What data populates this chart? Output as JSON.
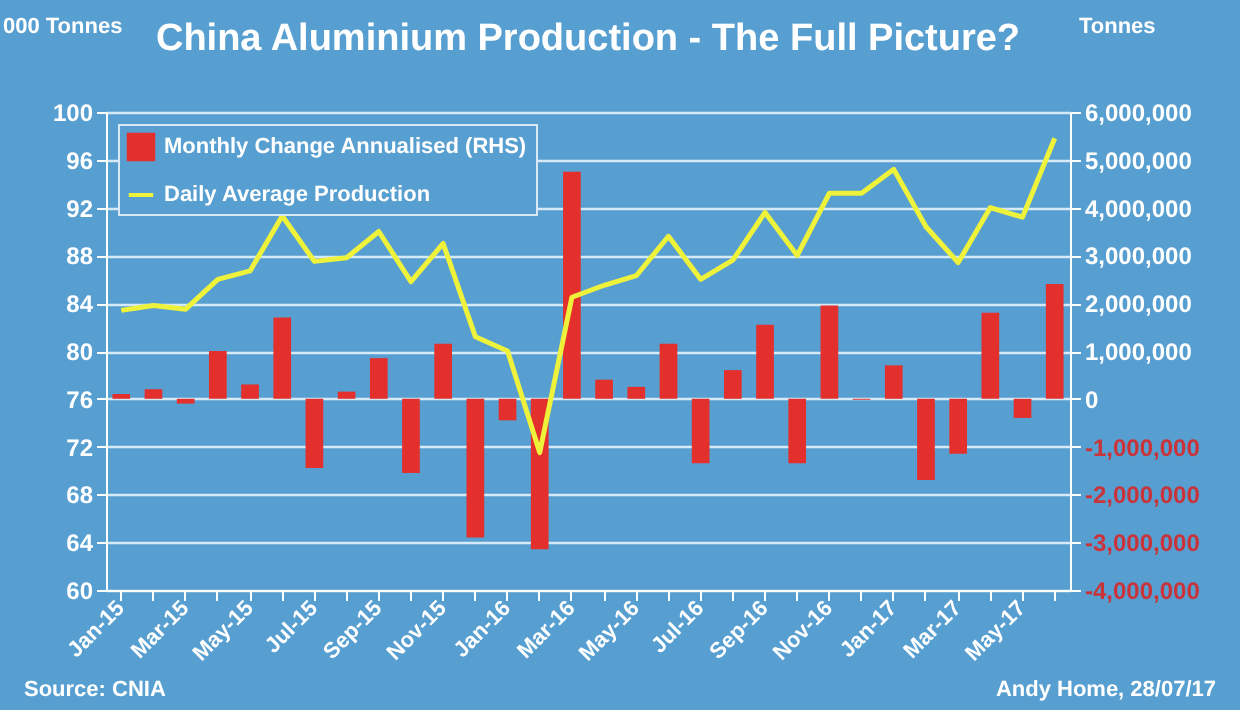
{
  "chart_data": {
    "type": "bar",
    "title": "China Aluminium  Production - The Full Picture?",
    "ylabel": "000 Tonnes",
    "y2label": "Tonnes",
    "categories": [
      "Jan-15",
      null,
      "Mar-15",
      null,
      "May-15",
      null,
      "Jul-15",
      null,
      "Sep-15",
      null,
      "Nov-15",
      null,
      "Jan-16",
      null,
      "Mar-16",
      null,
      "May-16",
      null,
      "Jul-16",
      null,
      "Sep-16",
      null,
      "Nov-16",
      null,
      "Jan-17",
      null,
      "Mar-17",
      null,
      "May-17",
      null
    ],
    "series": [
      {
        "name": "Monthly Change Annualised (RHS)",
        "axis": "y2",
        "color": "#e3302c",
        "values": [
          100000,
          200000,
          -100000,
          1000000,
          300000,
          1700000,
          -1450000,
          150000,
          850000,
          -1550000,
          1150000,
          -2900000,
          -450000,
          -3150000,
          4750000,
          400000,
          250000,
          1150000,
          -1350000,
          600000,
          1550000,
          -1350000,
          1950000,
          -20000,
          700000,
          -1700000,
          -1150000,
          1800000,
          -400000,
          2400000
        ]
      },
      {
        "name": "Daily Average Production",
        "type": "line",
        "color": "#eef23a",
        "values": [
          83.4,
          83.8,
          83.5,
          86.0,
          86.7,
          91.3,
          87.5,
          87.8,
          90.0,
          85.8,
          89.0,
          81.2,
          80.0,
          71.5,
          84.5,
          85.5,
          86.3,
          89.6,
          86.0,
          87.6,
          91.6,
          88.0,
          93.2,
          93.2,
          95.2,
          90.4,
          87.4,
          92.0,
          91.2,
          97.8
        ]
      }
    ],
    "ylim": [
      60,
      100
    ],
    "yticks": [
      60,
      64,
      68,
      72,
      76,
      80,
      84,
      88,
      92,
      96,
      100
    ],
    "y2lim": [
      -4000000,
      6000000
    ],
    "y2ticks": [
      {
        "value": -4000000,
        "label": "-4,000,000"
      },
      {
        "value": -3000000,
        "label": "-3,000,000"
      },
      {
        "value": -2000000,
        "label": "-2,000,000"
      },
      {
        "value": -1000000,
        "label": "-1,000,000"
      },
      {
        "value": 0,
        "label": "0"
      },
      {
        "value": 1000000,
        "label": "1,000,000"
      },
      {
        "value": 2000000,
        "label": "2,000,000"
      },
      {
        "value": 3000000,
        "label": "3,000,000"
      },
      {
        "value": 4000000,
        "label": "4,000,000"
      },
      {
        "value": 5000000,
        "label": "5,000,000"
      },
      {
        "value": 6000000,
        "label": "6,000,000"
      }
    ],
    "grid": "y",
    "legend": "top left",
    "marker": "none",
    "line_style": "solid",
    "annotations": [
      "Source: CNIA",
      "Andy Home, 28/07/17"
    ]
  }
}
